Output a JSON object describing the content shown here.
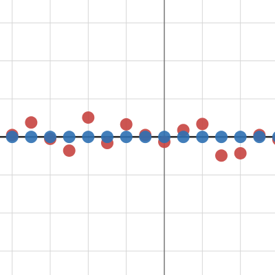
{
  "chart_data": {
    "type": "scatter",
    "x": [
      -4,
      -3.5,
      -3,
      -2.5,
      -2,
      -1.5,
      -1,
      -0.5,
      0,
      0.5,
      1,
      1.5,
      2,
      2.5,
      3
    ],
    "series": [
      {
        "color": "#c74440",
        "values": [
          0.05,
          0.38,
          -0.05,
          -0.36,
          0.51,
          -0.16,
          0.33,
          0.05,
          -0.13,
          0.18,
          0.34,
          -0.49,
          -0.43,
          0.05,
          -0.07
        ]
      },
      {
        "color": "#2d70b3",
        "values": [
          0,
          0,
          0,
          0,
          0,
          0,
          0,
          0,
          0,
          0,
          0,
          0,
          0,
          0,
          0
        ]
      }
    ],
    "xlim": [
      -4.32,
      2.91
    ],
    "ylim": [
      -3.63,
      3.6
    ],
    "xticks": [
      -4,
      -3,
      -2,
      -1,
      0,
      1,
      2
    ],
    "yticks": [
      -3,
      -2,
      -1,
      0,
      1,
      2,
      3
    ],
    "grid": true
  }
}
